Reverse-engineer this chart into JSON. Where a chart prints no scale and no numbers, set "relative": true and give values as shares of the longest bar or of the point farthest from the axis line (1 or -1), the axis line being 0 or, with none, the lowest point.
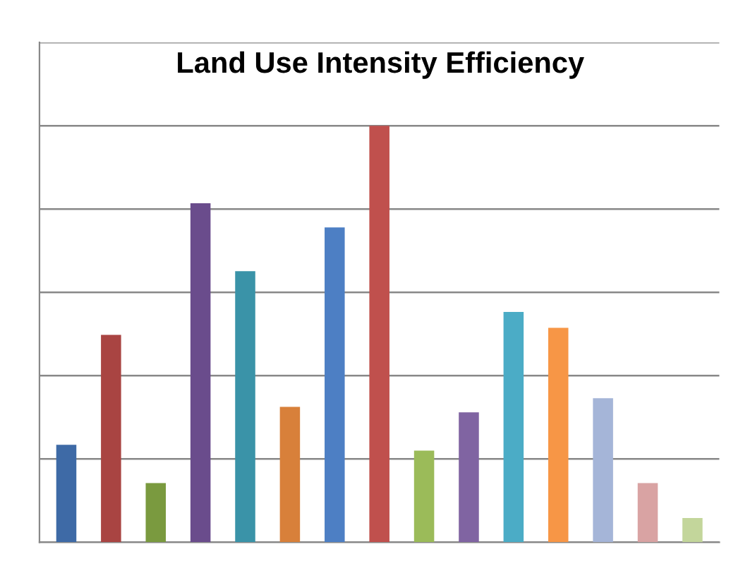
{
  "chart_data": {
    "type": "bar",
    "title": "Land Use Intensity Efficiency",
    "relative": true,
    "grid": "y",
    "categories": [
      null,
      null,
      null,
      null,
      null,
      null,
      null,
      null,
      null,
      null,
      null,
      null,
      null,
      null,
      null
    ],
    "values": [
      0.234,
      0.498,
      0.142,
      0.814,
      0.651,
      0.325,
      0.756,
      1,
      0.22,
      0.312,
      0.553,
      0.515,
      0.346,
      0.142,
      0.058
    ],
    "colors": [
      "#3e6aa6",
      "#a94442",
      "#7a9a3f",
      "#6a4c8c",
      "#3a93a8",
      "#d8803a",
      "#4d7fc4",
      "#c0504d",
      "#9bbb59",
      "#8064a2",
      "#4bacc6",
      "#f79646",
      "#a5b5d8",
      "#d9a3a3",
      "#c3d69b"
    ]
  }
}
